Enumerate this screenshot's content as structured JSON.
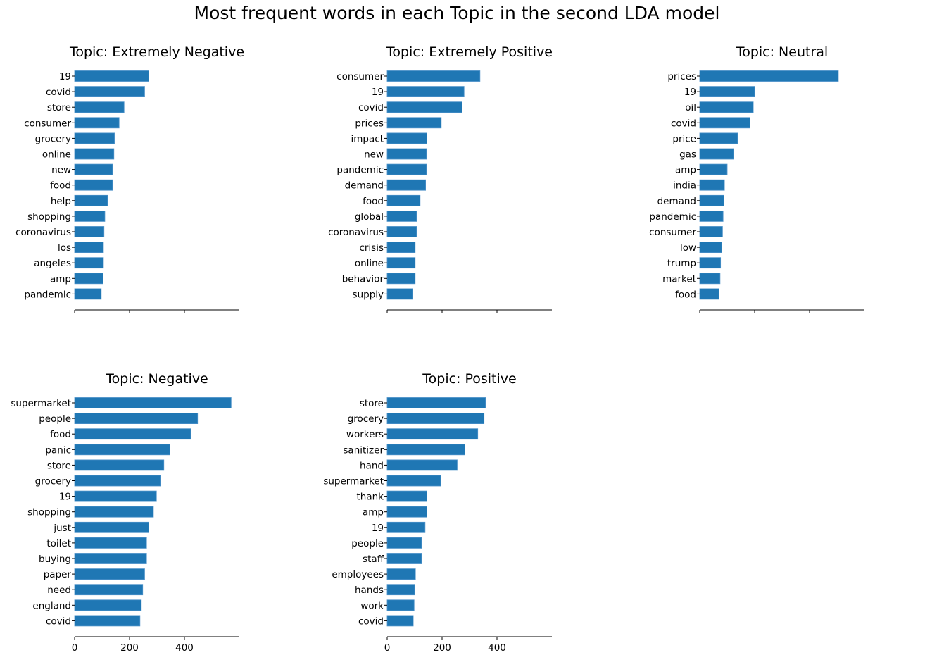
{
  "figure_title": "Most frequent words in each Topic in the second LDA model",
  "bar_color": "#1f77b4",
  "chart_data": [
    {
      "type": "bar",
      "orientation": "horizontal",
      "title": "Topic: Extremely Negative",
      "categories": [
        "19",
        "covid",
        "store",
        "consumer",
        "grocery",
        "online",
        "new",
        "food",
        "help",
        "shopping",
        "coronavirus",
        "los",
        "angeles",
        "amp",
        "pandemic"
      ],
      "values": [
        270,
        255,
        180,
        162,
        145,
        143,
        138,
        138,
        120,
        110,
        107,
        105,
        105,
        104,
        97
      ],
      "xlim": [
        0,
        600
      ],
      "xticks": [
        0,
        200,
        400
      ],
      "xticklabels_visible": false
    },
    {
      "type": "bar",
      "orientation": "horizontal",
      "title": "Topic: Extremely Positive",
      "categories": [
        "consumer",
        "19",
        "covid",
        "prices",
        "impact",
        "new",
        "pandemic",
        "demand",
        "food",
        "global",
        "coronavirus",
        "crisis",
        "online",
        "behavior",
        "supply"
      ],
      "values": [
        338,
        280,
        273,
        197,
        145,
        143,
        143,
        140,
        120,
        107,
        107,
        102,
        102,
        102,
        92
      ],
      "xlim": [
        0,
        600
      ],
      "xticks": [
        0,
        200,
        400
      ],
      "xticklabels_visible": false
    },
    {
      "type": "bar",
      "orientation": "horizontal",
      "title": "Topic: Neutral",
      "categories": [
        "prices",
        "19",
        "oil",
        "covid",
        "price",
        "gas",
        "amp",
        "india",
        "demand",
        "pandemic",
        "consumer",
        "low",
        "trump",
        "market",
        "food"
      ],
      "values": [
        505,
        200,
        195,
        183,
        138,
        123,
        100,
        90,
        88,
        85,
        83,
        80,
        76,
        74,
        70
      ],
      "xlim": [
        0,
        600
      ],
      "xticks": [
        0,
        200,
        400
      ],
      "xticklabels_visible": false
    },
    {
      "type": "bar",
      "orientation": "horizontal",
      "title": "Topic: Negative",
      "categories": [
        "supermarket",
        "people",
        "food",
        "panic",
        "store",
        "grocery",
        "19",
        "shopping",
        "just",
        "toilet",
        "buying",
        "paper",
        "need",
        "england",
        "covid"
      ],
      "values": [
        570,
        448,
        423,
        347,
        325,
        312,
        298,
        287,
        270,
        262,
        262,
        255,
        248,
        243,
        238
      ],
      "xlim": [
        0,
        600
      ],
      "xticks": [
        0,
        200,
        400
      ],
      "xticklabels": [
        "0",
        "200",
        "400"
      ],
      "xticklabels_visible": true
    },
    {
      "type": "bar",
      "orientation": "horizontal",
      "title": "Topic: Positive",
      "categories": [
        "store",
        "grocery",
        "workers",
        "sanitizer",
        "hand",
        "supermarket",
        "thank",
        "amp",
        "19",
        "people",
        "staff",
        "employees",
        "hands",
        "work",
        "covid"
      ],
      "values": [
        358,
        353,
        330,
        283,
        255,
        195,
        145,
        145,
        138,
        125,
        125,
        103,
        100,
        98,
        95
      ],
      "xlim": [
        0,
        600
      ],
      "xticks": [
        0,
        200,
        400
      ],
      "xticklabels": [
        "0",
        "200",
        "400"
      ],
      "xticklabels_visible": true
    }
  ]
}
